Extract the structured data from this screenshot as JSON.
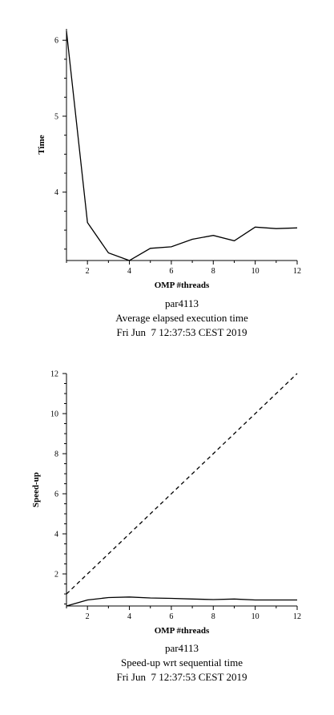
{
  "chart_data": [
    {
      "type": "line",
      "xlabel": "OMP #threads",
      "ylabel": "Time",
      "captions": [
        "par4113",
        "Average elapsed execution time",
        "Fri Jun  7 12:37:53 CEST 2019"
      ],
      "xlim": [
        1,
        12
      ],
      "ylim": [
        3.1,
        6.15
      ],
      "x_ticks": [
        2,
        4,
        6,
        8,
        10,
        12
      ],
      "y_ticks": [
        4,
        5,
        6
      ],
      "grid": false,
      "series": [
        {
          "style": "solid",
          "x": [
            1,
            2,
            3,
            4,
            5,
            6,
            7,
            8,
            9,
            10,
            11,
            12
          ],
          "y": [
            6.12,
            3.6,
            3.2,
            3.1,
            3.26,
            3.28,
            3.38,
            3.43,
            3.36,
            3.54,
            3.52,
            3.53
          ]
        }
      ]
    },
    {
      "type": "line",
      "xlabel": "OMP #threads",
      "ylabel": "Speed-up",
      "captions": [
        "par4113",
        "Speed-up wrt sequential time",
        "Fri Jun  7 12:37:53 CEST 2019"
      ],
      "xlim": [
        1,
        12
      ],
      "ylim": [
        0.4,
        12
      ],
      "x_ticks": [
        2,
        4,
        6,
        8,
        10,
        12
      ],
      "y_ticks": [
        2,
        4,
        6,
        8,
        10,
        12
      ],
      "grid": false,
      "series": [
        {
          "style": "solid",
          "x": [
            1,
            2,
            3,
            4,
            5,
            6,
            7,
            8,
            9,
            10,
            11,
            12
          ],
          "y": [
            0.4,
            0.7,
            0.82,
            0.85,
            0.8,
            0.78,
            0.75,
            0.72,
            0.75,
            0.7,
            0.7,
            0.7
          ]
        },
        {
          "style": "dashed",
          "x": [
            1,
            12
          ],
          "y": [
            1,
            12
          ]
        }
      ]
    }
  ]
}
